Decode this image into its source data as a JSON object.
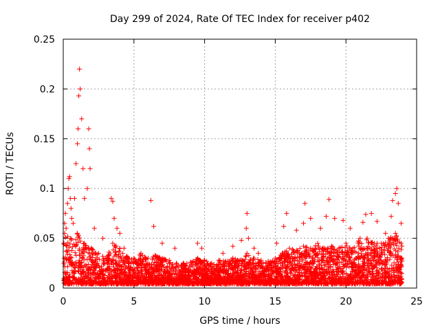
{
  "chart_data": {
    "type": "scatter",
    "title": "Day 299 of 2024, Rate Of TEC Index for receiver p402",
    "xlabel": "GPS time / hours",
    "ylabel": "ROTI / TECUs",
    "xlim": [
      0,
      25
    ],
    "ylim": [
      0,
      0.25
    ],
    "x_ticks": [
      "0",
      "5",
      "10",
      "15",
      "20",
      "25"
    ],
    "y_ticks": [
      "0",
      "0.05",
      "0.1",
      "0.15",
      "0.2",
      "0.25"
    ],
    "grid": true,
    "marker": "+",
    "color": "#ff0000",
    "series": [
      {
        "x": [
          0.05,
          0.1,
          0.15,
          0.2,
          0.3,
          0.35,
          0.4,
          0.45,
          0.5,
          0.55,
          0.6,
          0.7,
          0.8,
          0.9,
          1.0,
          1.05,
          1.1,
          1.15,
          1.2,
          1.3,
          1.4,
          1.5,
          1.7,
          1.8,
          1.85,
          1.9,
          2.2,
          2.8,
          3.4,
          3.5,
          3.6,
          3.8,
          4.0,
          4.3,
          6.2,
          6.4,
          7.0,
          7.9,
          9.5,
          9.8,
          11.3,
          12.0,
          12.6,
          12.95,
          13.0,
          13.1,
          13.5,
          13.8,
          15.1,
          15.6,
          15.8,
          16.5,
          17.0,
          17.1,
          17.5,
          18.2,
          18.6,
          18.8,
          19.2,
          19.8,
          20.3,
          21.2,
          21.4,
          21.8,
          22.2,
          22.8,
          23.2,
          23.3,
          23.5,
          23.6,
          23.7,
          23.9
        ],
        "y": [
          0.045,
          0.065,
          0.075,
          0.06,
          0.085,
          0.1,
          0.11,
          0.112,
          0.09,
          0.08,
          0.07,
          0.065,
          0.09,
          0.125,
          0.145,
          0.16,
          0.193,
          0.22,
          0.2,
          0.17,
          0.12,
          0.09,
          0.1,
          0.16,
          0.14,
          0.12,
          0.06,
          0.05,
          0.09,
          0.087,
          0.07,
          0.06,
          0.055,
          0.04,
          0.088,
          0.062,
          0.045,
          0.04,
          0.045,
          0.04,
          0.035,
          0.042,
          0.048,
          0.06,
          0.075,
          0.05,
          0.04,
          0.035,
          0.045,
          0.062,
          0.075,
          0.058,
          0.065,
          0.085,
          0.07,
          0.06,
          0.072,
          0.089,
          0.07,
          0.068,
          0.06,
          0.066,
          0.074,
          0.075,
          0.067,
          0.055,
          0.072,
          0.088,
          0.095,
          0.1,
          0.085,
          0.065
        ]
      },
      {
        "x": [
          0.1,
          0.5,
          1.0,
          1.5,
          2.0,
          2.5,
          3.0,
          3.5,
          4.0,
          4.5,
          5.0,
          5.5,
          6.0,
          6.5,
          7.0,
          7.5,
          8.0,
          8.5,
          9.0,
          9.5,
          10.0,
          10.5,
          11.0,
          11.5,
          12.0,
          12.5,
          13.0,
          13.5,
          14.0,
          14.5,
          15.0,
          15.5,
          16.0,
          16.5,
          17.0,
          17.5,
          18.0,
          18.5,
          19.0,
          19.5,
          20.0,
          20.5,
          21.0,
          21.5,
          22.0,
          22.5,
          23.0,
          23.5,
          23.9
        ],
        "y": [
          0.055,
          0.05,
          0.055,
          0.045,
          0.04,
          0.035,
          0.03,
          0.045,
          0.04,
          0.032,
          0.03,
          0.035,
          0.03,
          0.033,
          0.03,
          0.028,
          0.025,
          0.025,
          0.026,
          0.03,
          0.028,
          0.025,
          0.028,
          0.027,
          0.03,
          0.028,
          0.035,
          0.03,
          0.028,
          0.027,
          0.03,
          0.035,
          0.04,
          0.038,
          0.042,
          0.04,
          0.045,
          0.04,
          0.042,
          0.04,
          0.045,
          0.04,
          0.05,
          0.05,
          0.045,
          0.045,
          0.05,
          0.055,
          0.045
        ]
      },
      {
        "x": [
          0.1,
          0.5,
          1.0,
          1.5,
          2.0,
          2.5,
          3.0,
          3.5,
          4.0,
          4.5,
          5.0,
          5.5,
          6.0,
          6.5,
          7.0,
          7.5,
          8.0,
          8.5,
          9.0,
          9.5,
          10.0,
          10.5,
          11.0,
          11.5,
          12.0,
          12.5,
          13.0,
          13.5,
          14.0,
          14.5,
          15.0,
          15.5,
          16.0,
          16.5,
          17.0,
          17.5,
          18.0,
          18.5,
          19.0,
          19.5,
          20.0,
          20.5,
          21.0,
          21.5,
          22.0,
          22.5,
          23.0,
          23.5,
          23.9
        ],
        "y": [
          0.005,
          0.006,
          0.006,
          0.005,
          0.006,
          0.005,
          0.005,
          0.006,
          0.005,
          0.005,
          0.005,
          0.005,
          0.005,
          0.006,
          0.005,
          0.005,
          0.006,
          0.006,
          0.005,
          0.006,
          0.005,
          0.005,
          0.006,
          0.005,
          0.005,
          0.006,
          0.005,
          0.005,
          0.006,
          0.005,
          0.005,
          0.006,
          0.005,
          0.005,
          0.006,
          0.006,
          0.005,
          0.005,
          0.006,
          0.005,
          0.005,
          0.006,
          0.006,
          0.005,
          0.005,
          0.006,
          0.006,
          0.005,
          0.006
        ]
      }
    ]
  }
}
